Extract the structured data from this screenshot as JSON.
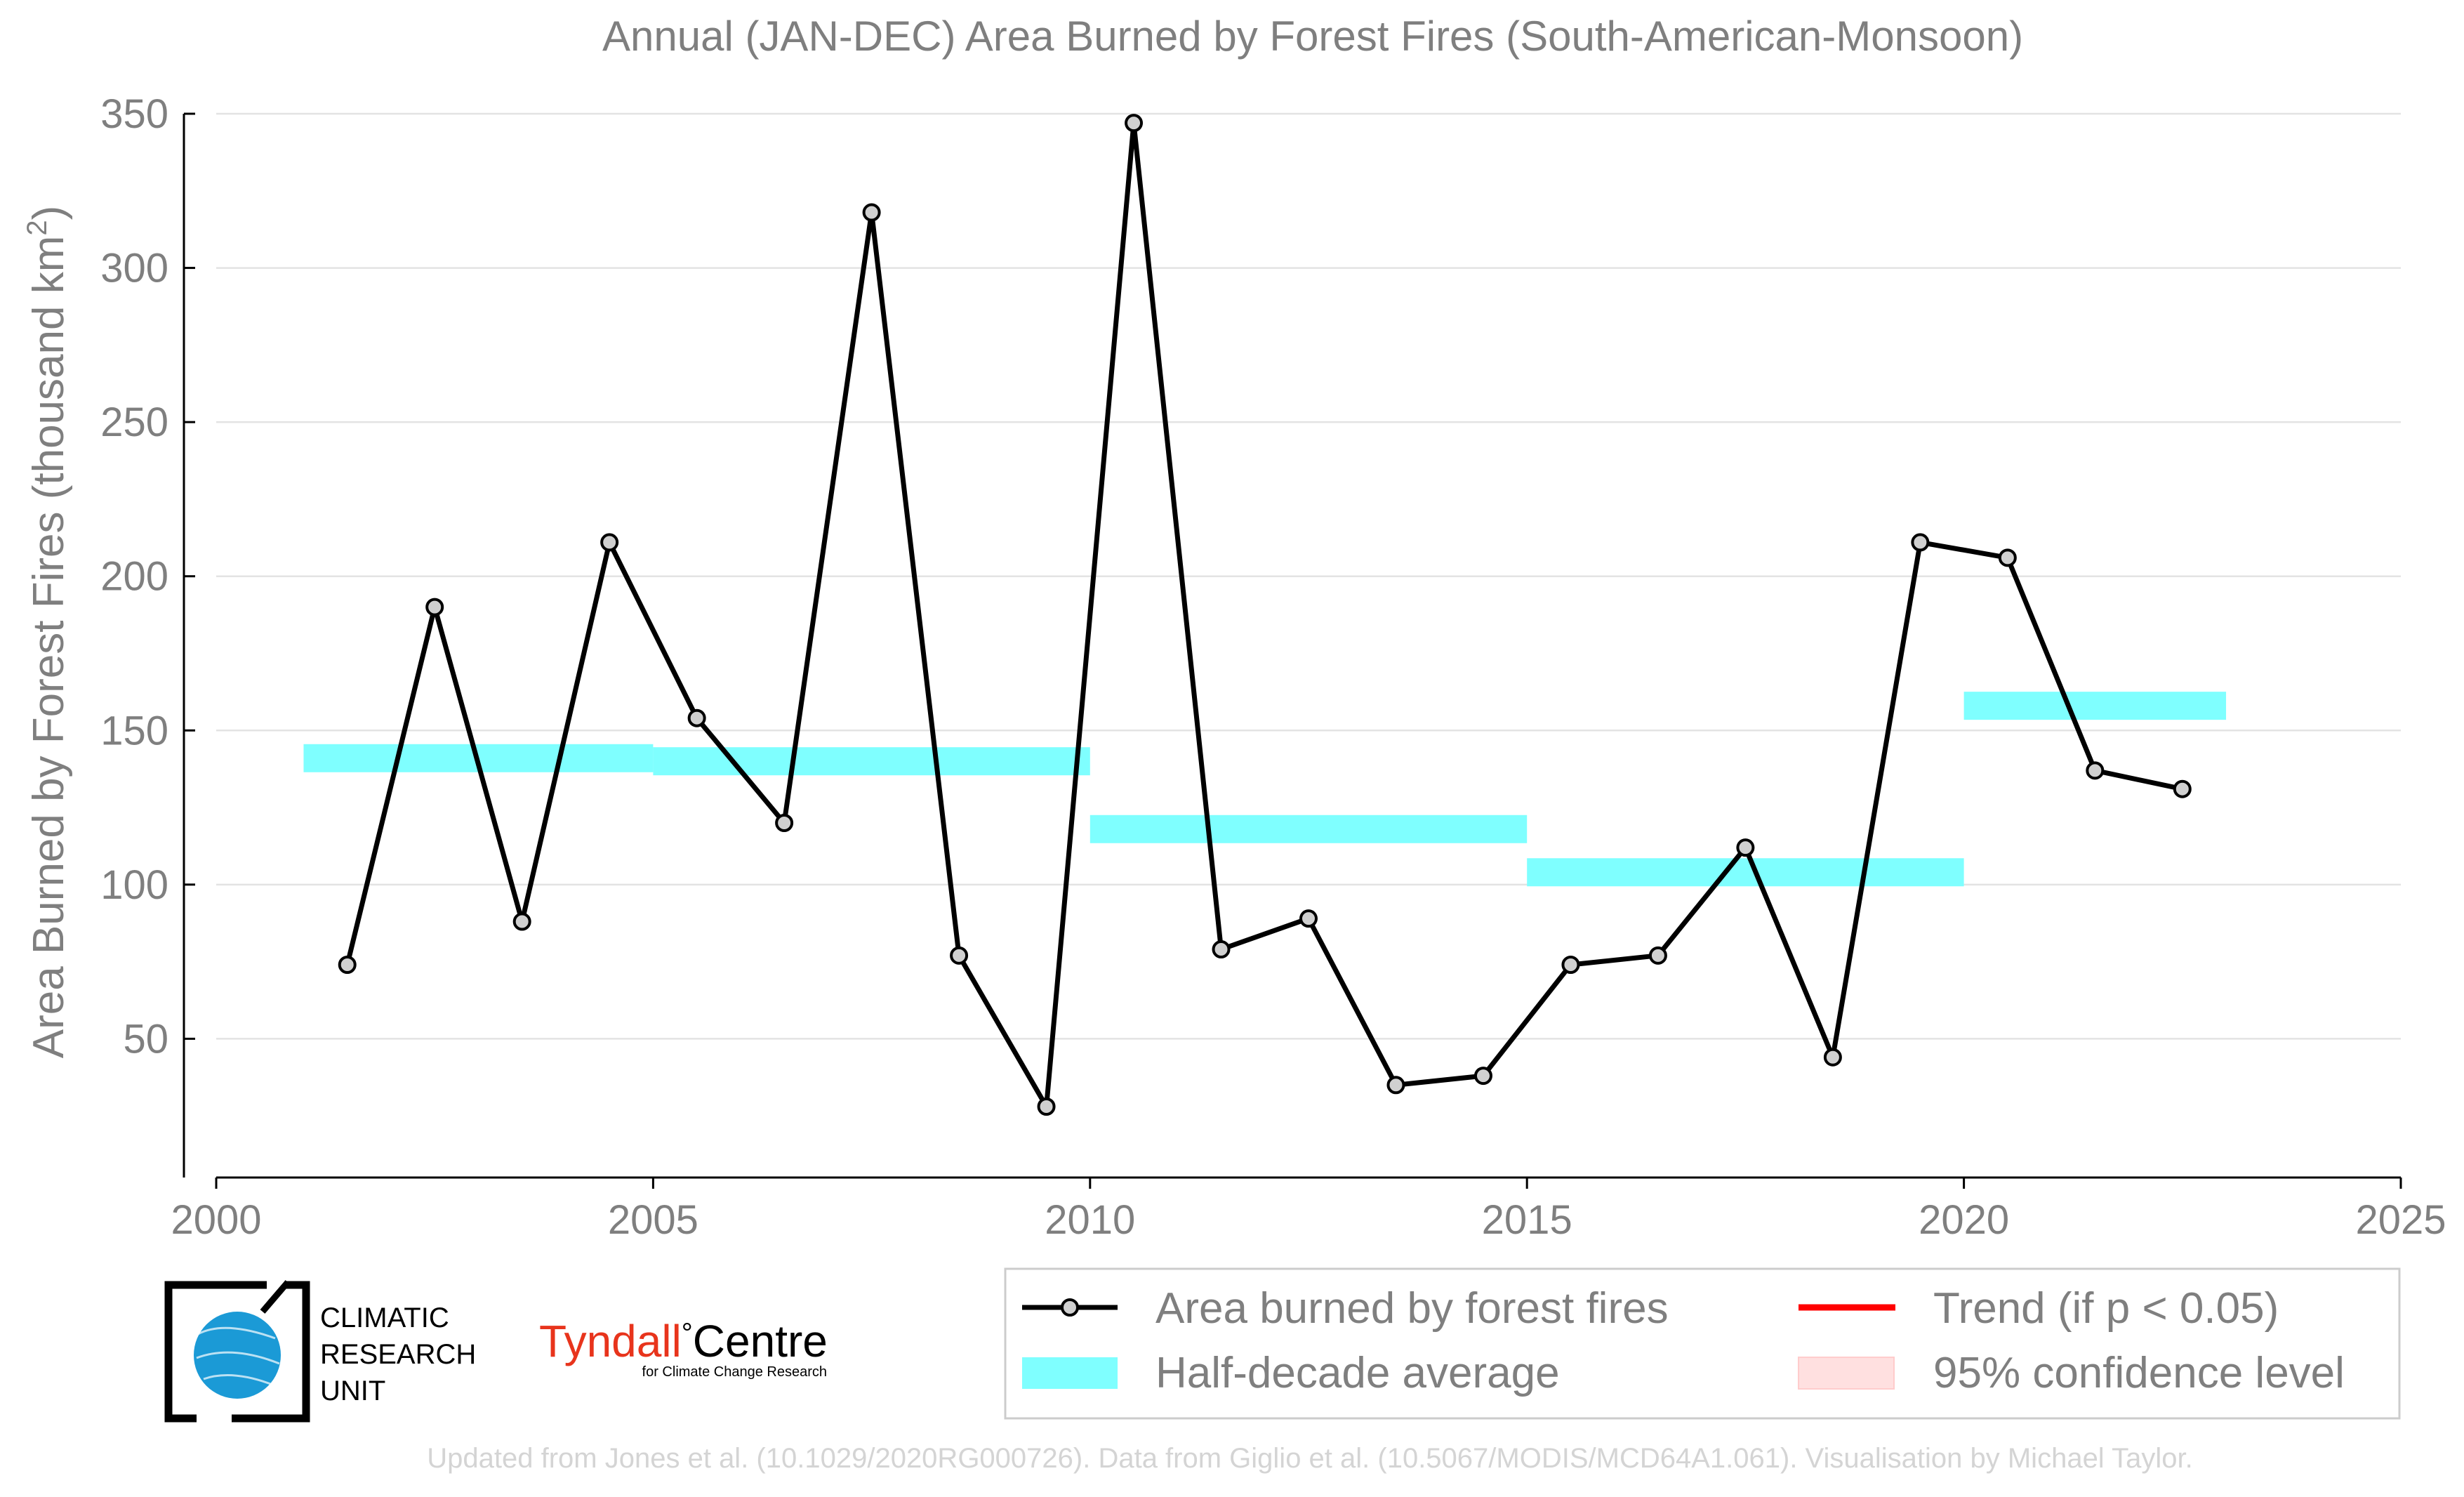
{
  "chart_data": {
    "type": "line",
    "title": "Annual (JAN-DEC) Area Burned by Forest Fires (South-American-Monsoon)",
    "ylabel": "Area Burned by Forest Fires (thousand km",
    "ylabel_sup": "2",
    "ylabel_close": ")",
    "xlim": [
      2000,
      2025
    ],
    "ylim": [
      5,
      350
    ],
    "xticks": [
      "2000",
      "2005",
      "2010",
      "2015",
      "2020",
      "2025"
    ],
    "yticks": [
      "50",
      "100",
      "150",
      "200",
      "250",
      "300",
      "350"
    ],
    "grid": "horizontal",
    "series": [
      {
        "name": "Area burned by forest fires",
        "color": "#000000",
        "marker_fill": "#d0d0d0",
        "x": [
          2001.5,
          2002.5,
          2003.5,
          2004.5,
          2005.5,
          2006.5,
          2007.5,
          2008.5,
          2009.5,
          2010.5,
          2011.5,
          2012.5,
          2013.5,
          2014.5,
          2015.5,
          2016.5,
          2017.5,
          2018.5,
          2019.5,
          2020.5,
          2021.5,
          2022.5
        ],
        "values": [
          74,
          190,
          88,
          211,
          154,
          120,
          318,
          77,
          28,
          347,
          79,
          89,
          35,
          38,
          74,
          77,
          112,
          44,
          211,
          206,
          137,
          131
        ]
      }
    ],
    "half_decade_average": {
      "name": "Half-decade average",
      "color": "#7fffff",
      "segments": [
        {
          "x0": 2001,
          "x1": 2005,
          "y": 141
        },
        {
          "x0": 2005,
          "x1": 2010,
          "y": 140
        },
        {
          "x0": 2010,
          "x1": 2015,
          "y": 118
        },
        {
          "x0": 2015,
          "x1": 2020,
          "y": 104
        },
        {
          "x0": 2020,
          "x1": 2023,
          "y": 158
        }
      ]
    },
    "legend": {
      "position": "bottom-right",
      "items": [
        {
          "label": "Area burned by forest fires",
          "kind": "line-marker",
          "color": "#000000"
        },
        {
          "label": "Trend (if p < 0.05)",
          "kind": "line",
          "color": "#ff0000"
        },
        {
          "label": "Half-decade average",
          "kind": "patch",
          "color": "#7fffff"
        },
        {
          "label": "95% confidence level",
          "kind": "patch",
          "color": "#ffe0e0"
        }
      ]
    }
  },
  "logos": {
    "cru_lines": [
      "CLIMATIC",
      "RESEARCH",
      "UNIT"
    ],
    "tyndall_name": "Tyndall",
    "tyndall_degree": "°",
    "tyndall_centre": "Centre",
    "tyndall_sub": "for Climate Change Research",
    "tyndall_color": "#e8341c",
    "globe_color": "#1b9ad6"
  },
  "footer": "Updated from Jones et al. (10.1029/2020RG000726). Data from Giglio et al. (10.5067/MODIS/MCD64A1.061). Visualisation by Michael Taylor."
}
